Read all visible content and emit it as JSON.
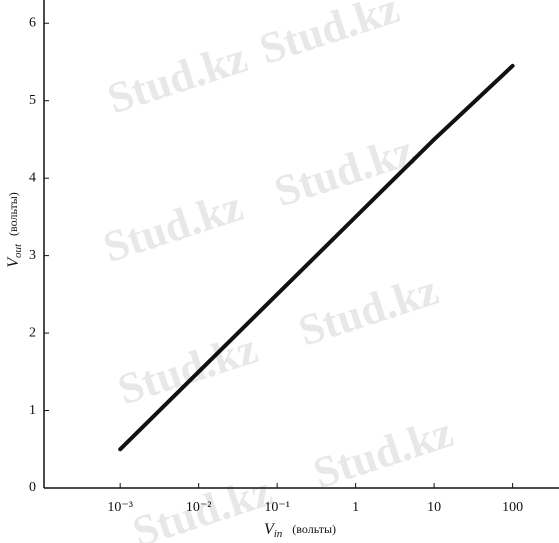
{
  "chart_data": {
    "type": "line",
    "watermark": "Stud.kz",
    "xlabel": {
      "symbol": "V",
      "subscript": "in",
      "unit": "(вольты)"
    },
    "ylabel": {
      "symbol": "V",
      "subscript": "out",
      "unit": "(вольты)"
    },
    "x": [
      0.001,
      0.01,
      0.1,
      1,
      10,
      100
    ],
    "series": [
      {
        "color": "#111111",
        "values": [
          0.5,
          1.5,
          2.5,
          3.5,
          4.5,
          5.45
        ]
      }
    ],
    "xscale": "log",
    "xlim": [
      0.000107,
      390
    ],
    "xticks": [
      {
        "value": 0.001,
        "label": "10⁻³"
      },
      {
        "value": 0.01,
        "label": "10⁻²"
      },
      {
        "value": 0.1,
        "label": "10⁻¹"
      },
      1,
      10,
      100
    ],
    "ylim": [
      0,
      6.3
    ],
    "yticks": [
      0,
      1,
      2,
      3,
      4,
      5,
      6
    ],
    "grid": false
  }
}
